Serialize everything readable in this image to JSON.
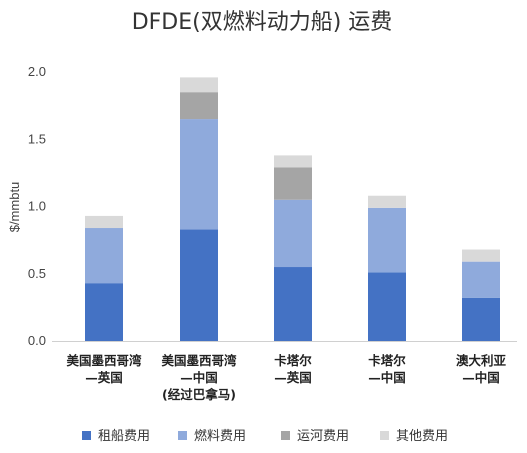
{
  "chart_data": {
    "type": "bar",
    "stacked": true,
    "title": "DFDE(双燃料动力船) 运费",
    "xlabel": "",
    "ylabel": "$/mmbtu",
    "ylim": [
      0,
      2.0
    ],
    "yticks": [
      "0.0",
      "0.5",
      "1.0",
      "1.5",
      "2.0"
    ],
    "grid": false,
    "legend_position": "bottom",
    "categories": [
      [
        "美国墨西哥湾",
        "—英国"
      ],
      [
        "美国墨西哥湾",
        "—中国",
        "(经过巴拿马)"
      ],
      [
        "卡塔尔",
        "—英国"
      ],
      [
        "卡塔尔",
        "—中国"
      ],
      [
        "澳大利亚",
        "—中国"
      ]
    ],
    "series": [
      {
        "name": "租船费用",
        "color": "#4472c4",
        "values": [
          0.43,
          0.83,
          0.55,
          0.51,
          0.32
        ]
      },
      {
        "name": "燃料费用",
        "color": "#8faadc",
        "values": [
          0.41,
          0.82,
          0.5,
          0.48,
          0.27
        ]
      },
      {
        "name": "运河费用",
        "color": "#a5a5a5",
        "values": [
          0.0,
          0.2,
          0.24,
          0.0,
          0.0
        ]
      },
      {
        "name": "其他费用",
        "color": "#d9d9d9",
        "values": [
          0.09,
          0.11,
          0.09,
          0.09,
          0.09
        ]
      }
    ]
  }
}
